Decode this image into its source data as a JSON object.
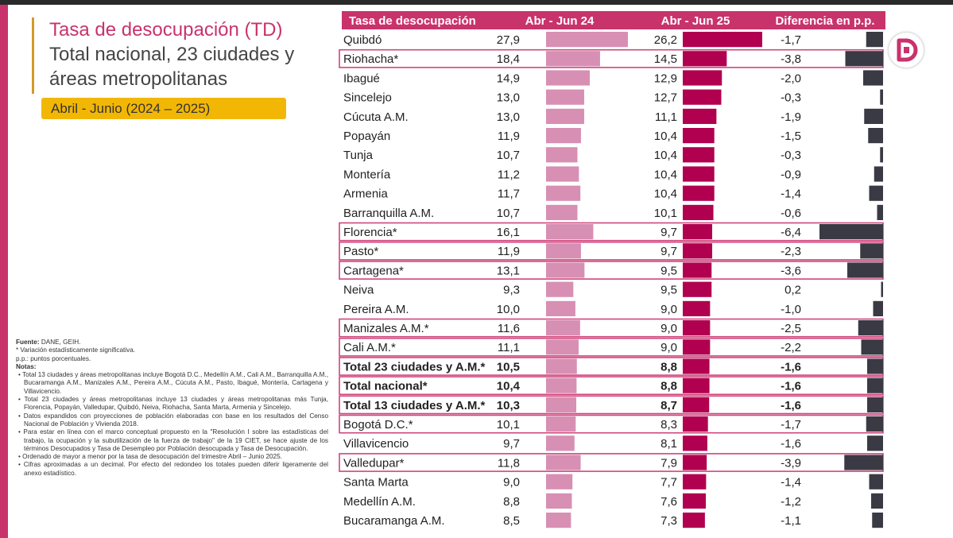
{
  "title": {
    "line1_main": "Tasa de desocupación",
    "line1_suffix": " (TD)",
    "line2": "Total nacional, 23 ciudades y",
    "line3": "áreas metropolitanas"
  },
  "period_label": "Abril - Junio (2024 – 2025)",
  "notes": {
    "fuente_label": "Fuente:",
    "fuente_value": " DANE, GEIH.",
    "asterisk_note": "* Variación estadísticamente significativa.",
    "pp_note": "p.p.: puntos porcentuales.",
    "notas_label": "Notas",
    "items": [
      "Total 13 ciudades y áreas metropolitanas incluye Bogotá D.C., Medellín A.M., Cali A.M., Barranquilla A.M., Bucaramanga A.M., Manizales A.M., Pereira A.M., Cúcuta A.M., Pasto, Ibagué, Montería, Cartagena y Villavicencio.",
      "Total 23 ciudades y áreas metropolitanas incluye 13 ciudades y áreas metropolitanas más Tunja, Florencia, Popayán, Valledupar, Quibdó, Neiva, Riohacha, Santa Marta, Armenia y Sincelejo.",
      "Datos expandidos con proyecciones de población elaboradas con base en los resultados del Censo Nacional de Población y Vivienda 2018.",
      "Para estar en línea con el marco conceptual propuesto en la \"Resolución I sobre las estadísticas del trabajo, la ocupación y la subutilización de la fuerza de trabajo\" de la 19 CIET, se hace ajuste de los términos Desocupados y Tasa de Desempleo por Población desocupada y Tasa de Desocupación.",
      "Ordenado de mayor a menor por la tasa de desocupación del trimestre Abril – Junio 2025.",
      "Cifras aproximadas a un decimal. Por efecto del redondeo los totales pueden diferir ligeramente del anexo estadístico."
    ]
  },
  "colors": {
    "accent": "#c8336b",
    "bar_2024": "#d88fb4",
    "bar_2025": "#b0004f",
    "bar_diff": "#3a3a44",
    "period_bg": "#f2b705",
    "highlight_border": "#d0457c"
  },
  "chart_data": {
    "type": "table",
    "headers": [
      "Tasa de desocupación",
      "Abr - Jun 24",
      "Abr - Jun 25",
      "Diferencia en p.p."
    ],
    "rows": [
      {
        "name": "Quibdó",
        "v24": "27,9",
        "v25": "26,2",
        "diff": "-1,7",
        "highlight": false,
        "bold": false
      },
      {
        "name": "Riohacha*",
        "v24": "18,4",
        "v25": "14,5",
        "diff": "-3,8",
        "highlight": true,
        "bold": false
      },
      {
        "name": "Ibagué",
        "v24": "14,9",
        "v25": "12,9",
        "diff": "-2,0",
        "highlight": false,
        "bold": false
      },
      {
        "name": "Sincelejo",
        "v24": "13,0",
        "v25": "12,7",
        "diff": "-0,3",
        "highlight": false,
        "bold": false
      },
      {
        "name": "Cúcuta A.M.",
        "v24": "13,0",
        "v25": "11,1",
        "diff": "-1,9",
        "highlight": false,
        "bold": false
      },
      {
        "name": "Popayán",
        "v24": "11,9",
        "v25": "10,4",
        "diff": "-1,5",
        "highlight": false,
        "bold": false
      },
      {
        "name": "Tunja",
        "v24": "10,7",
        "v25": "10,4",
        "diff": "-0,3",
        "highlight": false,
        "bold": false
      },
      {
        "name": "Montería",
        "v24": "11,2",
        "v25": "10,4",
        "diff": "-0,9",
        "highlight": false,
        "bold": false
      },
      {
        "name": "Armenia",
        "v24": "11,7",
        "v25": "10,4",
        "diff": "-1,4",
        "highlight": false,
        "bold": false
      },
      {
        "name": "Barranquilla A.M.",
        "v24": "10,7",
        "v25": "10,1",
        "diff": "-0,6",
        "highlight": false,
        "bold": false
      },
      {
        "name": "Florencia*",
        "v24": "16,1",
        "v25": "9,7",
        "diff": "-6,4",
        "highlight": true,
        "bold": false
      },
      {
        "name": "Pasto*",
        "v24": "11,9",
        "v25": "9,7",
        "diff": "-2,3",
        "highlight": true,
        "bold": false
      },
      {
        "name": "Cartagena*",
        "v24": "13,1",
        "v25": "9,5",
        "diff": "-3,6",
        "highlight": true,
        "bold": false
      },
      {
        "name": "Neiva",
        "v24": "9,3",
        "v25": "9,5",
        "diff": "0,2",
        "highlight": false,
        "bold": false
      },
      {
        "name": "Pereira A.M.",
        "v24": "10,0",
        "v25": "9,0",
        "diff": "-1,0",
        "highlight": false,
        "bold": false
      },
      {
        "name": "Manizales A.M.*",
        "v24": "11,6",
        "v25": "9,0",
        "diff": "-2,5",
        "highlight": true,
        "bold": false
      },
      {
        "name": "Cali A.M.*",
        "v24": "11,1",
        "v25": "9,0",
        "diff": "-2,2",
        "highlight": true,
        "bold": false
      },
      {
        "name": "Total 23 ciudades y A.M.*",
        "v24": "10,5",
        "v25": "8,8",
        "diff": "-1,6",
        "highlight": true,
        "bold": true
      },
      {
        "name": "Total nacional*",
        "v24": "10,4",
        "v25": "8,8",
        "diff": "-1,6",
        "highlight": true,
        "bold": true
      },
      {
        "name": "Total 13 ciudades y A.M.*",
        "v24": "10,3",
        "v25": "8,7",
        "diff": "-1,6",
        "highlight": true,
        "bold": true
      },
      {
        "name": "Bogotá D.C.*",
        "v24": "10,1",
        "v25": "8,3",
        "diff": "-1,7",
        "highlight": true,
        "bold": false
      },
      {
        "name": "Villavicencio",
        "v24": "9,7",
        "v25": "8,1",
        "diff": "-1,6",
        "highlight": false,
        "bold": false
      },
      {
        "name": "Valledupar*",
        "v24": "11,8",
        "v25": "7,9",
        "diff": "-3,9",
        "highlight": true,
        "bold": false
      },
      {
        "name": "Santa Marta",
        "v24": "9,0",
        "v25": "7,7",
        "diff": "-1,4",
        "highlight": false,
        "bold": false
      },
      {
        "name": "Medellín A.M.",
        "v24": "8,8",
        "v25": "7,6",
        "diff": "-1,2",
        "highlight": false,
        "bold": false
      },
      {
        "name": "Bucaramanga A.M.",
        "v24": "8,5",
        "v25": "7,3",
        "diff": "-1,1",
        "highlight": false,
        "bold": false
      }
    ]
  }
}
